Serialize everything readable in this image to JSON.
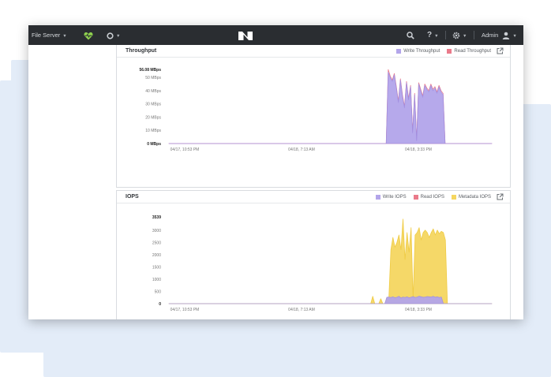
{
  "colors": {
    "write": "#b3a5ea",
    "write_stroke": "#9f8fe3",
    "read": "#ea7a8a",
    "metadata": "#f5d660",
    "metadata_stroke": "#efc93a",
    "topbar": "#2a2d31",
    "background_panel": "#e3ecf8"
  },
  "topbar": {
    "file_server_label": "File Server",
    "health_icon": "heart-pulse-icon",
    "status_icon": "circle-status-icon",
    "logo_icon": "nutanix-logo-icon",
    "search_icon": "search-icon",
    "help_icon": "question-icon",
    "settings_icon": "gear-icon",
    "user_label": "Admin",
    "user_icon": "user-icon"
  },
  "throughput": {
    "title": "Throughput",
    "legend": [
      "Write Throughput",
      "Read Throughput"
    ],
    "open_icon": "external-link-icon"
  },
  "iops": {
    "title": "IOPS",
    "legend": [
      "Write IOPS",
      "Read IOPS",
      "Metadata IOPS"
    ],
    "open_icon": "external-link-icon"
  },
  "chart_data": [
    {
      "type": "area",
      "title": "Throughput",
      "ylim": [
        0,
        56.08
      ],
      "y_ticks": [
        "0 MBps",
        "10 MBps",
        "20 MBps",
        "30 MBps",
        "40 MBps",
        "50 MBps",
        "56.08 MBps"
      ],
      "x_ticks": [
        "04/17, 10:53 PM",
        "04/18, 7:13 AM",
        "04/18, 3:33 PM"
      ],
      "series": [
        {
          "name": "Write Throughput",
          "values": [
            0,
            0,
            0,
            0,
            0,
            0,
            0,
            0,
            0,
            0,
            0,
            0,
            0,
            0,
            0,
            0,
            0,
            0,
            0,
            0,
            0,
            0,
            0,
            0,
            0,
            0,
            0,
            0,
            0,
            0,
            0,
            0,
            0,
            0,
            0,
            0,
            0,
            0,
            0,
            0,
            0,
            0,
            0,
            0,
            0,
            0,
            0,
            0,
            0,
            0,
            0,
            0,
            0,
            0,
            0,
            0,
            0,
            0,
            0,
            0,
            0,
            0,
            0,
            0,
            0,
            0,
            0,
            0,
            0,
            0,
            0,
            0,
            0,
            0,
            0,
            0,
            0,
            0,
            0,
            0,
            0,
            0,
            0,
            0,
            0,
            0,
            0,
            0,
            0,
            0,
            0,
            0,
            0,
            0,
            0,
            0,
            0,
            0,
            0,
            0,
            0,
            0,
            0,
            0,
            0,
            0,
            0,
            0,
            54,
            50,
            47,
            52,
            42,
            31,
            48,
            36,
            27,
            46,
            33,
            43,
            8,
            37,
            2,
            45,
            40,
            35,
            44,
            41,
            39,
            44,
            40,
            42,
            38,
            43,
            39,
            37,
            0,
            0,
            0,
            0,
            0,
            0,
            0,
            0,
            0,
            0,
            0,
            0,
            0,
            0,
            0,
            0,
            0,
            0,
            0,
            0,
            0,
            0,
            0,
            0
          ]
        },
        {
          "name": "Read Throughput",
          "values": [
            0,
            0,
            0,
            0,
            0,
            0,
            0,
            0,
            0,
            0,
            0,
            0,
            0,
            0,
            0,
            0,
            0,
            0,
            0,
            0,
            0,
            0,
            0,
            0,
            0,
            0,
            0,
            0,
            0,
            0,
            0,
            0,
            0,
            0,
            0,
            0,
            0,
            0,
            0,
            0,
            0,
            0,
            0,
            0,
            0,
            0,
            0,
            0,
            0,
            0,
            0,
            0,
            0,
            0,
            0,
            0,
            0,
            0,
            0,
            0,
            0,
            0,
            0,
            0,
            0,
            0,
            0,
            0,
            0,
            0,
            0,
            0,
            0,
            0,
            0,
            0,
            0,
            0,
            0,
            0,
            0,
            0,
            0,
            0,
            0,
            0,
            0,
            0,
            0,
            0,
            0,
            0,
            0,
            0,
            0,
            0,
            0,
            0,
            0,
            0,
            0,
            0,
            0,
            0,
            0,
            0,
            0,
            0,
            56,
            51,
            48,
            53,
            43,
            32,
            49,
            37,
            28,
            47,
            34,
            44,
            9,
            38,
            3,
            46,
            41,
            36,
            45,
            42,
            40,
            45,
            41,
            43,
            39,
            44,
            40,
            38,
            0,
            0,
            0,
            0,
            0,
            0,
            0,
            0,
            0,
            0,
            0,
            0,
            0,
            0,
            0,
            0,
            0,
            0,
            0,
            0,
            0,
            0,
            0,
            0
          ]
        }
      ]
    },
    {
      "type": "area",
      "title": "IOPS",
      "ylim": [
        0,
        3539
      ],
      "y_ticks": [
        "0",
        "500",
        "1000",
        "1500",
        "2000",
        "2500",
        "3000",
        "3539"
      ],
      "x_ticks": [
        "04/17, 10:53 PM",
        "04/18, 7:13 AM",
        "04/18, 3:33 PM"
      ],
      "series": [
        {
          "name": "Write IOPS",
          "values": [
            0,
            0,
            0,
            0,
            0,
            0,
            0,
            0,
            0,
            0,
            0,
            0,
            0,
            0,
            0,
            0,
            0,
            0,
            0,
            0,
            0,
            0,
            0,
            0,
            0,
            0,
            0,
            0,
            0,
            0,
            0,
            0,
            0,
            0,
            0,
            0,
            0,
            0,
            0,
            0,
            0,
            0,
            0,
            0,
            0,
            0,
            0,
            0,
            0,
            0,
            0,
            0,
            0,
            0,
            0,
            0,
            0,
            0,
            0,
            0,
            0,
            0,
            0,
            0,
            0,
            0,
            0,
            0,
            0,
            0,
            0,
            0,
            0,
            0,
            0,
            0,
            0,
            0,
            0,
            0,
            0,
            0,
            0,
            0,
            0,
            0,
            0,
            0,
            0,
            0,
            0,
            0,
            0,
            0,
            0,
            0,
            0,
            0,
            0,
            0,
            0,
            0,
            0,
            0,
            0,
            0,
            0,
            0,
            260,
            270,
            250,
            280,
            240,
            260,
            300,
            230,
            270,
            250,
            280,
            240,
            260,
            290,
            250,
            270,
            300,
            280,
            260,
            270,
            290,
            280,
            270,
            300,
            260,
            280,
            250,
            270,
            0,
            0,
            0,
            0,
            0,
            0,
            0,
            0,
            0,
            0,
            0,
            0,
            0,
            0,
            0,
            0,
            0,
            0,
            0,
            0,
            0,
            0,
            0,
            0
          ]
        },
        {
          "name": "Read IOPS",
          "values": [
            0,
            0,
            0,
            0,
            0,
            0,
            0,
            0,
            0,
            0,
            0,
            0,
            0,
            0,
            0,
            0,
            0,
            0,
            0,
            0,
            0,
            0,
            0,
            0,
            0,
            0,
            0,
            0,
            0,
            0,
            0,
            0,
            0,
            0,
            0,
            0,
            0,
            0,
            0,
            0,
            0,
            0,
            0,
            0,
            0,
            0,
            0,
            0,
            0,
            0,
            0,
            0,
            0,
            0,
            0,
            0,
            0,
            0,
            0,
            0,
            0,
            0,
            0,
            0,
            0,
            0,
            0,
            0,
            0,
            0,
            0,
            0,
            0,
            0,
            0,
            0,
            0,
            0,
            0,
            0,
            0,
            0,
            0,
            0,
            0,
            0,
            0,
            0,
            0,
            0,
            0,
            0,
            0,
            0,
            0,
            0,
            0,
            0,
            0,
            0,
            0,
            0,
            0,
            0,
            0,
            0,
            0,
            0,
            0,
            0,
            0,
            0,
            0,
            0,
            0,
            0,
            0,
            0,
            0,
            0,
            0,
            0,
            0,
            0,
            0,
            0,
            0,
            0,
            0,
            0,
            0,
            0,
            0,
            0,
            0,
            0,
            0,
            0,
            0,
            0,
            0,
            0,
            0,
            0,
            0,
            0,
            0,
            0,
            0,
            0,
            0,
            0,
            0,
            0,
            0,
            0,
            0,
            0,
            0,
            0
          ]
        },
        {
          "name": "Metadata IOPS",
          "values": [
            0,
            0,
            0,
            0,
            0,
            0,
            0,
            0,
            0,
            0,
            0,
            0,
            0,
            0,
            0,
            0,
            0,
            0,
            0,
            0,
            0,
            0,
            0,
            0,
            0,
            0,
            0,
            0,
            0,
            0,
            0,
            0,
            0,
            0,
            0,
            0,
            0,
            0,
            0,
            0,
            0,
            0,
            0,
            0,
            0,
            0,
            0,
            0,
            0,
            0,
            0,
            0,
            0,
            0,
            0,
            0,
            0,
            0,
            0,
            0,
            0,
            0,
            0,
            0,
            0,
            0,
            0,
            0,
            0,
            0,
            0,
            0,
            0,
            0,
            0,
            0,
            0,
            0,
            0,
            0,
            0,
            0,
            0,
            0,
            0,
            0,
            0,
            0,
            0,
            0,
            0,
            0,
            0,
            0,
            0,
            0,
            0,
            0,
            0,
            0,
            0,
            300,
            0,
            0,
            0,
            200,
            0,
            0,
            250,
            240,
            2200,
            2700,
            2300,
            2500,
            2800,
            2200,
            3450,
            1800,
            2900,
            2100,
            3100,
            200,
            2800,
            2900,
            3100,
            2600,
            2900,
            3000,
            2900,
            2700,
            2900,
            3050,
            2800,
            3000,
            2850,
            2950,
            2900,
            2600,
            0,
            0,
            0,
            0,
            0,
            0,
            0,
            0,
            0,
            0,
            0,
            0,
            0,
            0,
            0,
            0,
            0,
            0,
            0,
            0,
            0,
            0,
            0
          ]
        }
      ]
    }
  ]
}
